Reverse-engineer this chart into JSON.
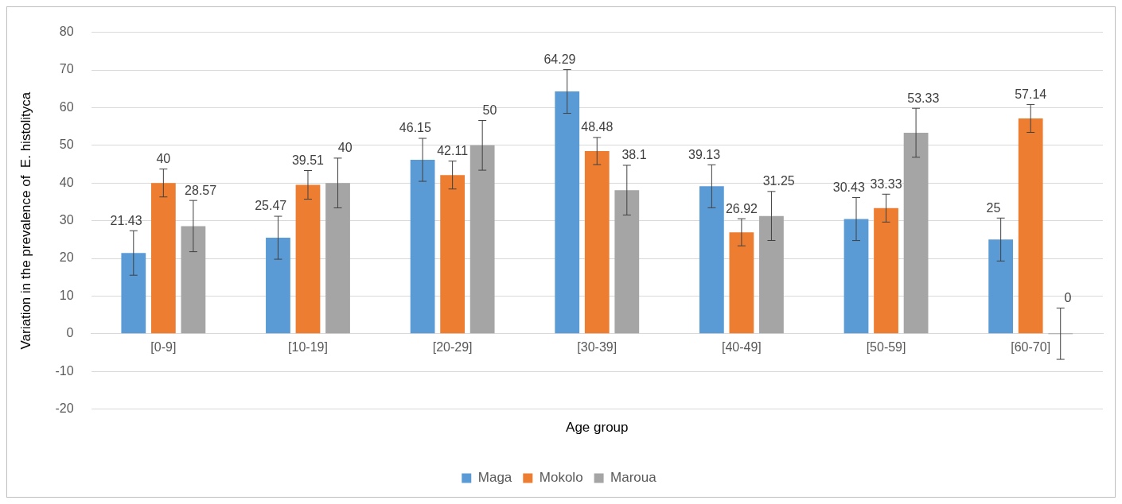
{
  "chart_data": {
    "type": "bar",
    "xlabel": "Age group",
    "ylabel": "Variation in the prevalence of  E. histolityca",
    "categories": [
      "[0-9]",
      "[10-19]",
      "[20-29]",
      "[30-39]",
      "[40-49]",
      "[50-59]",
      "[60-70]"
    ],
    "series": [
      {
        "name": "Maga",
        "color": "#5b9bd5",
        "values": [
          21.43,
          25.47,
          46.15,
          64.29,
          39.13,
          30.43,
          25
        ],
        "errors": [
          5.9,
          5.7,
          5.7,
          5.8,
          5.7,
          5.7,
          5.7
        ]
      },
      {
        "name": "Mokolo",
        "color": "#ed7d31",
        "values": [
          40,
          39.51,
          42.11,
          48.48,
          26.92,
          33.33,
          57.14
        ],
        "errors": [
          3.7,
          3.8,
          3.7,
          3.6,
          3.6,
          3.7,
          3.7
        ]
      },
      {
        "name": "Maroua",
        "color": "#a5a5a5",
        "values": [
          28.57,
          40,
          50,
          38.1,
          31.25,
          53.33,
          0
        ],
        "errors": [
          6.8,
          6.6,
          6.6,
          6.6,
          6.5,
          6.5,
          6.8
        ]
      }
    ],
    "ylim": [
      -20,
      80
    ],
    "yticks": [
      -20,
      -10,
      0,
      10,
      20,
      30,
      40,
      50,
      60,
      70,
      80
    ],
    "grid": "y",
    "legend": "bottom",
    "data_labels": true
  }
}
